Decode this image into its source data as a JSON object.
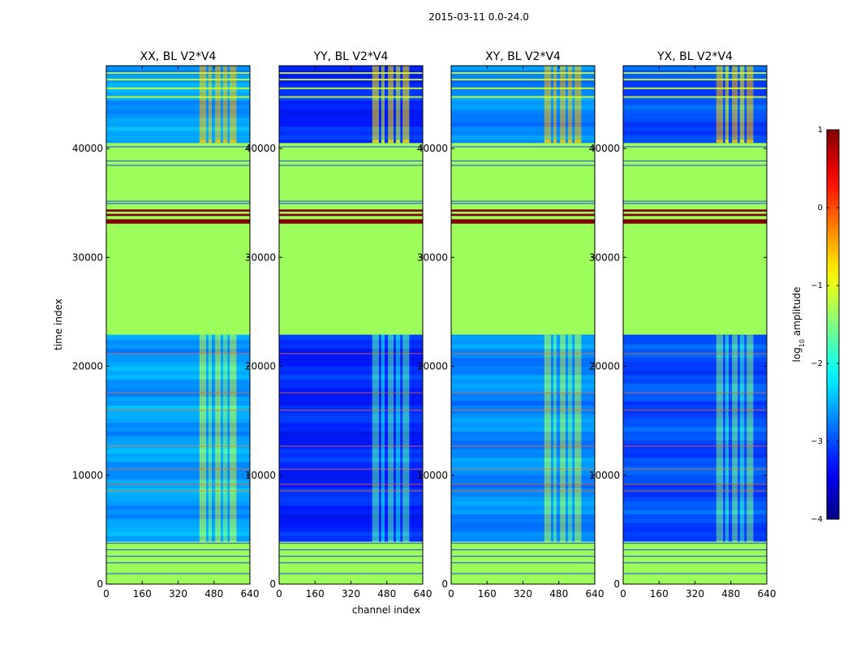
{
  "figure": {
    "suptitle": "2015-03-11 0.0-24.0",
    "ylabel": "time index",
    "xlabel": "channel index",
    "colorbar_label_prefix": "log",
    "colorbar_label_subscript": "10",
    "colorbar_label_suffix": " amplitude"
  },
  "chart_data": {
    "type": "heatmap",
    "colormap": "jet",
    "clim": [
      -4,
      1
    ],
    "colorbar_ticks": [
      1,
      0,
      -1,
      -2,
      -3,
      -4
    ],
    "colorbar_tick_labels": [
      "1",
      "0",
      "−1",
      "−2",
      "−3",
      "−4"
    ],
    "xlim": [
      0,
      640
    ],
    "ylim": [
      0,
      47600
    ],
    "x_ticks": [
      0,
      160,
      320,
      480,
      640
    ],
    "x_tick_labels": [
      "0",
      "160",
      "320",
      "480",
      "640"
    ],
    "y_ticks": [
      0,
      10000,
      20000,
      30000,
      40000
    ],
    "y_tick_labels": [
      "0",
      "10000",
      "20000",
      "30000",
      "40000"
    ],
    "flagged_value": -0.9,
    "flagged_time_ranges": [
      [
        0,
        3900
      ],
      [
        22900,
        40500
      ]
    ],
    "saturated_time_ranges": [
      [
        33100,
        33500
      ],
      [
        33800,
        34000
      ],
      [
        34200,
        34400
      ]
    ],
    "rfi_channel_ranges": [
      [
        415,
        445
      ],
      [
        455,
        470
      ],
      [
        485,
        510
      ],
      [
        520,
        540
      ],
      [
        550,
        580
      ]
    ],
    "panels": [
      {
        "title": "XX, BL V2*V4",
        "noise_level": -2.6
      },
      {
        "title": "YY, BL V2*V4",
        "noise_level": -3.2
      },
      {
        "title": "XY, BL V2*V4",
        "noise_level": -2.7
      },
      {
        "title": "YX, BL V2*V4",
        "noise_level": -3.0
      }
    ]
  },
  "colors": {
    "flagged": "#9dfd5a",
    "saturated": "#800000",
    "axis": "#000000"
  }
}
